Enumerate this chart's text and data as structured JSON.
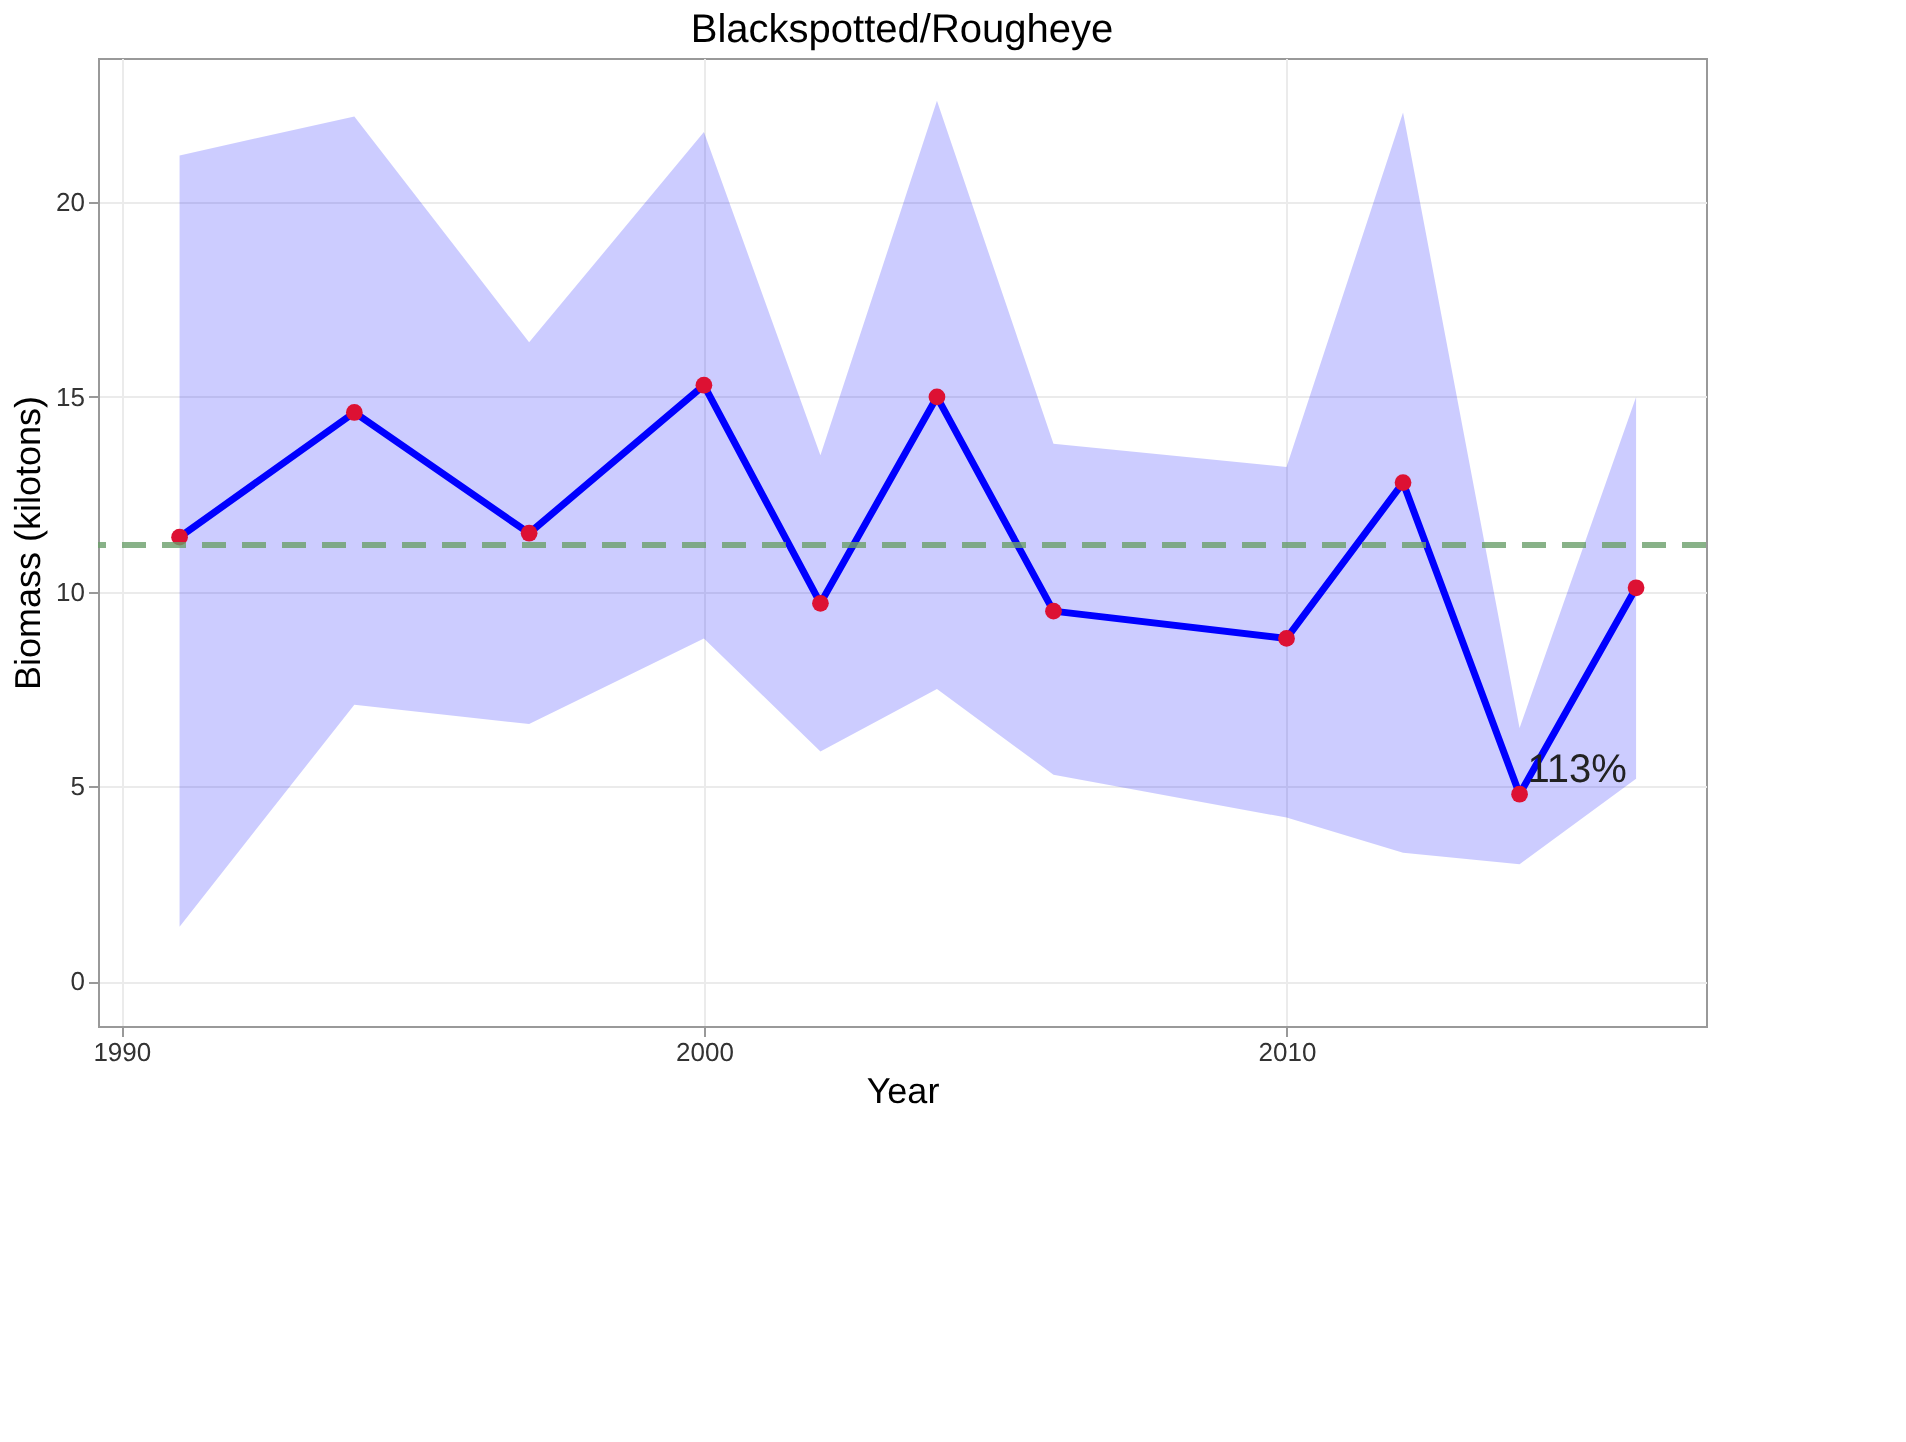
{
  "chart_data": {
    "type": "line",
    "title": "Blackspotted/Rougheye",
    "xlabel": "Year",
    "ylabel": "Biomass (kilotons)",
    "x": [
      1991,
      1994,
      1997,
      2000,
      2002,
      2004,
      2006,
      2010,
      2012,
      2014,
      2016
    ],
    "series": [
      {
        "color": "#0000ff",
        "values": [
          11.4,
          14.6,
          11.5,
          15.3,
          9.7,
          15.0,
          9.5,
          8.8,
          12.8,
          4.8,
          10.1
        ],
        "lower": [
          1.4,
          7.1,
          6.6,
          8.8,
          5.9,
          7.5,
          5.3,
          4.2,
          3.3,
          3.0,
          5.2
        ],
        "upper": [
          21.2,
          22.2,
          16.4,
          21.8,
          13.5,
          22.6,
          13.8,
          13.2,
          22.3,
          6.5,
          15.0
        ]
      }
    ],
    "xlim": [
      1989.6,
      2017.2
    ],
    "ylim": [
      -1.15,
      23.7
    ],
    "xticks": [
      1990,
      2000,
      2010
    ],
    "yticks": [
      0,
      5,
      10,
      15,
      20
    ],
    "ref_lines": [
      {
        "axis": "y",
        "value": 11.2,
        "color": "#6a9f6a",
        "line_style": "dashed"
      }
    ],
    "annotations": [
      {
        "text": "113%",
        "x": 2014,
        "y": 4.8
      }
    ],
    "grid": true,
    "marker": "circle",
    "line_style": "solid"
  }
}
